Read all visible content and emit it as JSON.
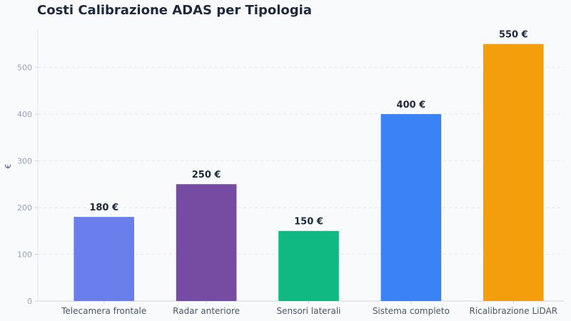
{
  "chart_data": {
    "type": "bar",
    "title": "Costi Calibrazione ADAS per Tipologia",
    "xlabel": "",
    "ylabel": "€",
    "categories": [
      "Telecamera frontale",
      "Radar anteriore",
      "Sensori laterali",
      "Sistema completo",
      "Ricalibrazione LiDAR"
    ],
    "values": [
      180,
      250,
      150,
      400,
      550
    ],
    "value_labels": [
      "180 €",
      "250 €",
      "150 €",
      "400 €",
      "550 €"
    ],
    "colors": [
      "#6b7fec",
      "#764ba2",
      "#10b981",
      "#3b82f6",
      "#f59e0b"
    ],
    "ylim": [
      0,
      580
    ],
    "yticks": [
      0,
      100,
      200,
      300,
      400,
      500
    ],
    "grid": true,
    "legend": "none"
  }
}
